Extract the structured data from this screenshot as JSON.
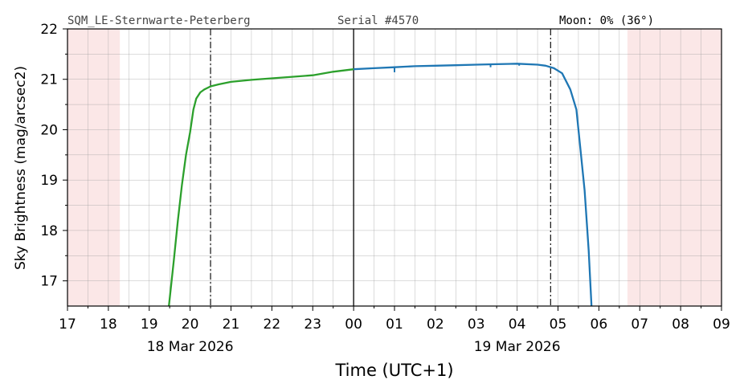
{
  "header": {
    "station": "SQM_LE-Sternwarte-Peterberg",
    "serial": "Serial #4570",
    "moon": "Moon: 0% (36°)"
  },
  "chart_data": {
    "type": "line",
    "xlabel": "Time (UTC+1)",
    "ylabel": "Sky Brightness (mag/arcsec2)",
    "x_units": "hours since 17:00 on 18 Mar 2026",
    "xlim": [
      0,
      16
    ],
    "ylim": [
      16.5,
      22
    ],
    "x_ticks": [
      "17",
      "18",
      "19",
      "20",
      "21",
      "22",
      "23",
      "00",
      "01",
      "02",
      "03",
      "04",
      "05",
      "06",
      "07",
      "08",
      "09"
    ],
    "y_ticks": [
      17,
      18,
      19,
      20,
      21,
      22
    ],
    "date_labels": [
      {
        "text": "18 Mar 2026",
        "x": 3
      },
      {
        "text": "19 Mar 2026",
        "x": 11
      }
    ],
    "grid": true,
    "daylight_bands": [
      {
        "from": 0,
        "to": 1.28
      },
      {
        "from": 13.7,
        "to": 16
      }
    ],
    "twilight_lines": [
      3.5,
      11.82
    ],
    "midnight_line": 7,
    "colors": {
      "evening": "#2ca02c",
      "morning": "#1f77b4",
      "daylight": "#f8d7d7",
      "grid": "#9a9a9a"
    },
    "series": [
      {
        "segment": "evening",
        "points": [
          [
            2.48,
            16.5
          ],
          [
            2.6,
            17.4
          ],
          [
            2.7,
            18.2
          ],
          [
            2.8,
            18.9
          ],
          [
            2.9,
            19.5
          ],
          [
            3.0,
            19.95
          ],
          [
            3.08,
            20.4
          ],
          [
            3.15,
            20.62
          ],
          [
            3.25,
            20.74
          ],
          [
            3.35,
            20.8
          ],
          [
            3.5,
            20.86
          ],
          [
            3.7,
            20.9
          ],
          [
            4.0,
            20.95
          ],
          [
            4.5,
            20.99
          ],
          [
            5.0,
            21.02
          ],
          [
            5.5,
            21.05
          ],
          [
            6.0,
            21.08
          ],
          [
            6.5,
            21.15
          ],
          [
            7.0,
            21.2
          ]
        ]
      },
      {
        "segment": "morning",
        "points": [
          [
            7.0,
            21.2
          ],
          [
            7.5,
            21.22
          ],
          [
            8.0,
            21.24
          ],
          [
            8.5,
            21.26
          ],
          [
            9.0,
            21.27
          ],
          [
            9.5,
            21.28
          ],
          [
            10.0,
            21.29
          ],
          [
            10.5,
            21.3
          ],
          [
            11.0,
            21.31
          ],
          [
            11.5,
            21.29
          ],
          [
            11.7,
            21.27
          ],
          [
            11.9,
            21.22
          ],
          [
            12.1,
            21.12
          ],
          [
            12.3,
            20.8
          ],
          [
            12.45,
            20.4
          ],
          [
            12.55,
            19.6
          ],
          [
            12.65,
            18.8
          ],
          [
            12.75,
            17.6
          ],
          [
            12.82,
            16.5
          ]
        ]
      }
    ],
    "glitches": [
      {
        "x": 8.0,
        "from": 21.24,
        "to": 21.14
      },
      {
        "x": 10.35,
        "from": 21.29,
        "to": 21.24
      },
      {
        "x": 11.05,
        "from": 21.31,
        "to": 21.27
      }
    ]
  }
}
